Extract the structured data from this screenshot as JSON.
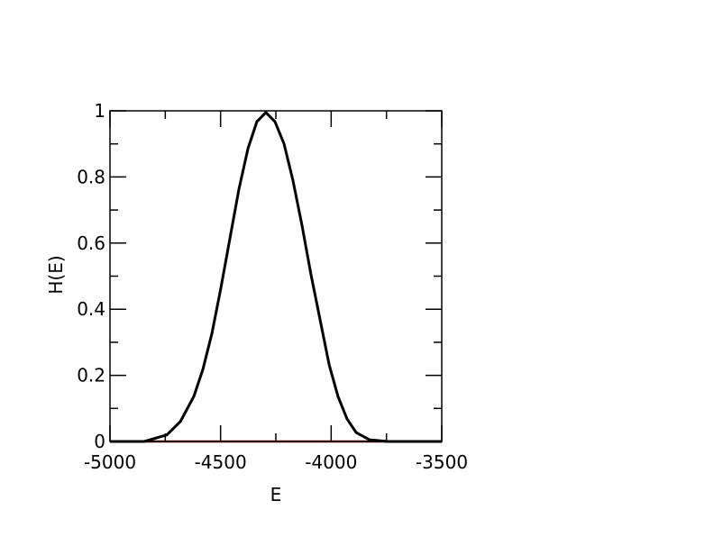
{
  "chart_data": {
    "type": "line",
    "x_label": "E",
    "y_label": "H(E)",
    "xlim": [
      -5000,
      -3500
    ],
    "xticks": [
      -5000,
      -4500,
      -4000,
      -3500
    ],
    "ylim": [
      0,
      1
    ],
    "yticks": [
      0,
      0.2,
      0.4,
      0.6,
      0.8,
      1
    ],
    "series": [
      {
        "color": "#000000",
        "x": [
          -5000,
          -4845,
          -4743,
          -4682,
          -4621,
          -4580,
          -4539,
          -4499,
          -4458,
          -4417,
          -4376,
          -4336,
          -4295,
          -4254,
          -4213,
          -4173,
          -4132,
          -4091,
          -4050,
          -4009,
          -3969,
          -3928,
          -3887,
          -3826,
          -3744,
          -3500
        ],
        "values": [
          0,
          0,
          0.02,
          0.06,
          0.136,
          0.218,
          0.327,
          0.463,
          0.613,
          0.763,
          0.886,
          0.967,
          0.995,
          0.967,
          0.9,
          0.79,
          0.654,
          0.504,
          0.368,
          0.232,
          0.136,
          0.068,
          0.027,
          0.005,
          0,
          0
        ]
      },
      {
        "color": "#8b0000",
        "x": [
          -5000,
          -3500
        ],
        "values": [
          0,
          0
        ]
      }
    ]
  }
}
